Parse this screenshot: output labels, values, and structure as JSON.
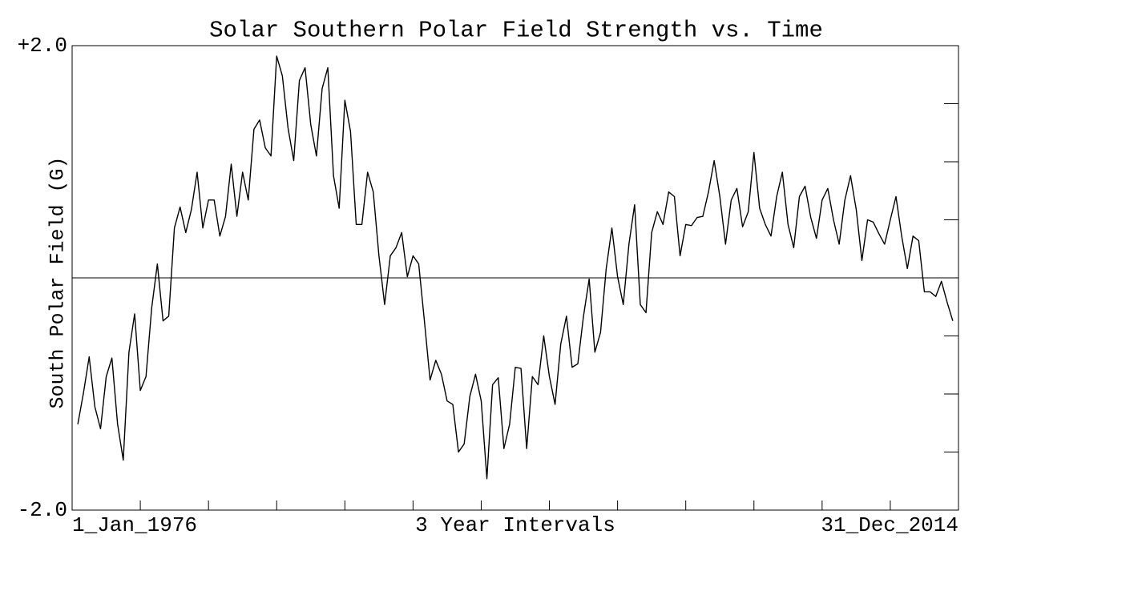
{
  "chart_data": {
    "type": "line",
    "title": "Solar Southern Polar Field Strength vs. Time",
    "ylabel": "South Polar Field (G)",
    "xlabel": "3 Year Intervals",
    "x_start_label": "1_Jan_1976",
    "x_end_label": "31_Dec_2014",
    "xlim": [
      1976,
      2015
    ],
    "minor_xticks": [
      1979,
      1982,
      1985,
      1988,
      1991,
      1994,
      1997,
      2000,
      2003,
      2006,
      2009,
      2012
    ],
    "ylim": [
      -2,
      2
    ],
    "yticks": [
      {
        "value": 2,
        "label": "+2.0"
      },
      {
        "value": -2,
        "label": "-2.0"
      }
    ],
    "minor_yticks": [
      1.5,
      1,
      0.5,
      -0.5,
      -1,
      -1.5
    ],
    "reference_line": 0,
    "series": [
      {
        "color": "#000000",
        "x": [
          1976.25,
          1976.5,
          1976.75,
          1977,
          1977.25,
          1977.5,
          1977.75,
          1978,
          1978.25,
          1978.5,
          1978.75,
          1979,
          1979.25,
          1979.5,
          1979.75,
          1980,
          1980.25,
          1980.5,
          1980.75,
          1981,
          1981.25,
          1981.5,
          1981.75,
          1982,
          1982.25,
          1982.5,
          1982.75,
          1983,
          1983.25,
          1983.5,
          1983.75,
          1984,
          1984.25,
          1984.5,
          1984.75,
          1985,
          1985.25,
          1985.5,
          1985.75,
          1986,
          1986.25,
          1986.5,
          1986.75,
          1987,
          1987.25,
          1987.5,
          1987.75,
          1988,
          1988.25,
          1988.5,
          1988.75,
          1989,
          1989.25,
          1989.5,
          1989.75,
          1990,
          1990.25,
          1990.5,
          1990.75,
          1991,
          1991.25,
          1991.5,
          1991.75,
          1992,
          1992.25,
          1992.5,
          1992.75,
          1993,
          1993.25,
          1993.5,
          1993.75,
          1994,
          1994.25,
          1994.5,
          1994.75,
          1995,
          1995.25,
          1995.5,
          1995.75,
          1996,
          1996.25,
          1996.5,
          1996.75,
          1997,
          1997.25,
          1997.5,
          1997.75,
          1998,
          1998.25,
          1998.5,
          1998.75,
          1999,
          1999.25,
          1999.5,
          1999.75,
          2000,
          2000.25,
          2000.5,
          2000.75,
          2001,
          2001.25,
          2001.5,
          2001.75,
          2002,
          2002.25,
          2002.5,
          2002.75,
          2003,
          2003.25,
          2003.5,
          2003.75,
          2004,
          2004.25,
          2004.5,
          2004.75,
          2005,
          2005.25,
          2005.5,
          2005.75,
          2006,
          2006.25,
          2006.5,
          2006.75,
          2007,
          2007.25,
          2007.5,
          2007.75,
          2008,
          2008.25,
          2008.5,
          2008.75,
          2009,
          2009.25,
          2009.5,
          2009.75,
          2010,
          2010.25,
          2010.5,
          2010.75,
          2011,
          2011.25,
          2011.5,
          2011.75,
          2012,
          2012.25,
          2012.5,
          2012.75,
          2013,
          2013.25,
          2013.5,
          2013.75,
          2014,
          2014.25,
          2014.5,
          2014.75
        ],
        "values": [
          -1.26,
          -0.99,
          -0.68,
          -1.11,
          -1.3,
          -0.85,
          -0.69,
          -1.26,
          -1.57,
          -0.64,
          -0.31,
          -0.97,
          -0.85,
          -0.26,
          0.12,
          -0.37,
          -0.33,
          0.43,
          0.61,
          0.39,
          0.59,
          0.91,
          0.43,
          0.67,
          0.67,
          0.36,
          0.53,
          0.98,
          0.53,
          0.91,
          0.67,
          1.28,
          1.36,
          1.12,
          1.05,
          1.91,
          1.74,
          1.29,
          1.01,
          1.7,
          1.81,
          1.32,
          1.05,
          1.63,
          1.81,
          0.88,
          0.6,
          1.53,
          1.26,
          0.46,
          0.46,
          0.91,
          0.74,
          0.19,
          -0.23,
          0.19,
          0.26,
          0.39,
          0.01,
          0.19,
          0.12,
          -0.37,
          -0.88,
          -0.71,
          -0.83,
          -1.06,
          -1.09,
          -1.5,
          -1.43,
          -1.02,
          -0.83,
          -1.06,
          -1.73,
          -0.92,
          -0.86,
          -1.47,
          -1.26,
          -0.77,
          -0.78,
          -1.47,
          -0.85,
          -0.92,
          -0.5,
          -0.85,
          -1.09,
          -0.57,
          -0.33,
          -0.77,
          -0.74,
          -0.33,
          -0.01,
          -0.64,
          -0.47,
          0.08,
          0.43,
          0.01,
          -0.23,
          0.29,
          0.63,
          -0.23,
          -0.3,
          0.39,
          0.57,
          0.46,
          0.74,
          0.7,
          0.19,
          0.46,
          0.45,
          0.52,
          0.53,
          0.74,
          1.01,
          0.7,
          0.29,
          0.67,
          0.77,
          0.44,
          0.57,
          1.08,
          0.6,
          0.46,
          0.36,
          0.7,
          0.91,
          0.46,
          0.26,
          0.7,
          0.79,
          0.52,
          0.34,
          0.67,
          0.77,
          0.5,
          0.29,
          0.67,
          0.88,
          0.59,
          0.15,
          0.5,
          0.48,
          0.38,
          0.29,
          0.5,
          0.7,
          0.36,
          0.08,
          0.36,
          0.32,
          -0.12,
          -0.12,
          -0.16,
          -0.03,
          -0.21,
          -0.37
        ]
      }
    ]
  }
}
